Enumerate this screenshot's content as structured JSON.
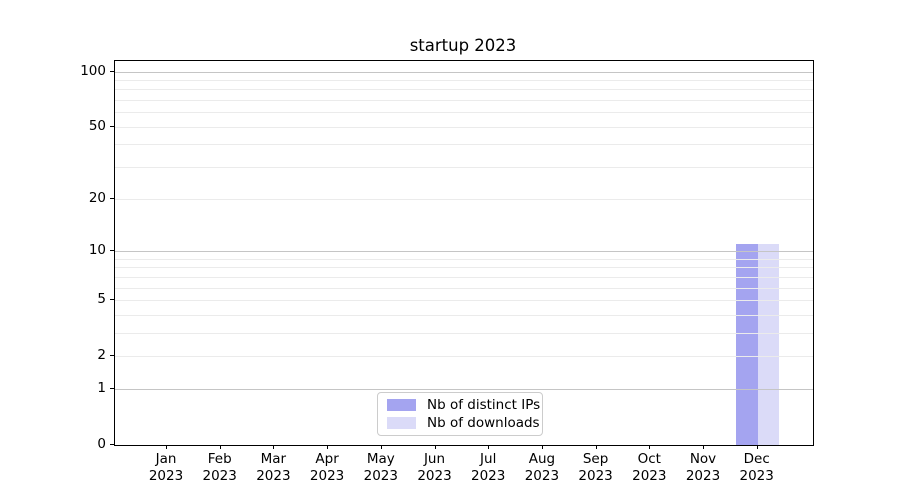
{
  "title": "startup 2023",
  "chart_data": {
    "type": "bar",
    "title": "startup 2023",
    "categories": [
      "Jan",
      "Feb",
      "Mar",
      "Apr",
      "May",
      "Jun",
      "Jul",
      "Aug",
      "Sep",
      "Oct",
      "Nov",
      "Dec"
    ],
    "category_year": "2023",
    "series": [
      {
        "name": "Nb of distinct IPs",
        "color": "#a4a4f0",
        "values": [
          0,
          0,
          0,
          0,
          0,
          0,
          0,
          0,
          0,
          0,
          0,
          11
        ]
      },
      {
        "name": "Nb of downloads",
        "color": "#dbdbf8",
        "values": [
          0,
          0,
          0,
          0,
          0,
          0,
          0,
          0,
          0,
          0,
          0,
          11
        ]
      }
    ],
    "xlabel": "",
    "ylabel": "",
    "yscale": "log1p",
    "ylim": [
      0,
      114
    ],
    "yticks": [
      0,
      1,
      2,
      5,
      10,
      20,
      50,
      100
    ],
    "grid": {
      "major_values": [
        1,
        10,
        100
      ],
      "minor_values": [
        2,
        3,
        4,
        5,
        6,
        7,
        8,
        9,
        20,
        30,
        40,
        50,
        60,
        70,
        80,
        90
      ],
      "major_color": "#c5c5c5",
      "minor_color": "#ebebeb"
    },
    "legend_position": "lower center inside plot",
    "axis_color": "#000000"
  }
}
